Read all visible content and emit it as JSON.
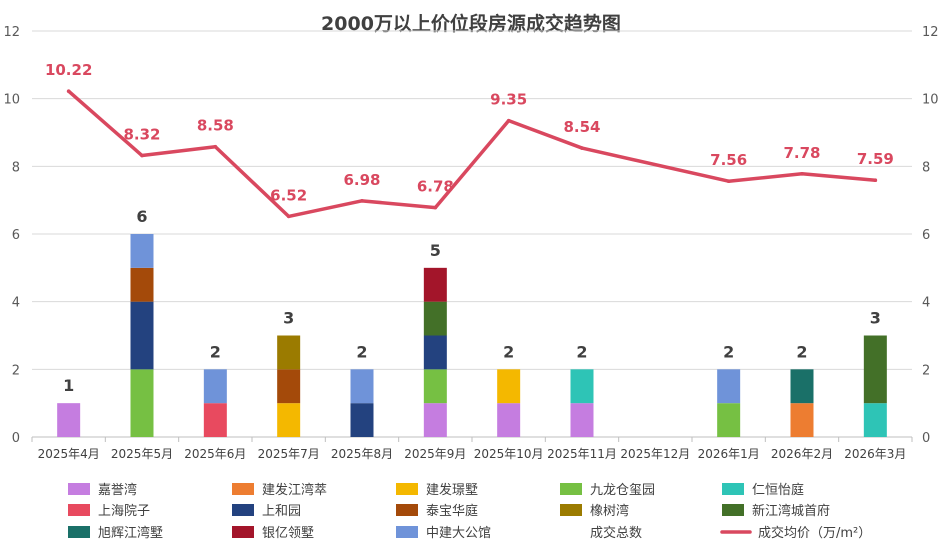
{
  "chart_data": {
    "type": "bar",
    "title": "2000万以上价位段房源成交趋势图",
    "categories": [
      "2025年4月",
      "2025年5月",
      "2025年6月",
      "2025年7月",
      "2025年8月",
      "2025年9月",
      "2025年10月",
      "2025年11月",
      "2025年12月",
      "2026年1月",
      "2026年2月",
      "2026年3月"
    ],
    "ylim": [
      0,
      12
    ],
    "y_ticks": [
      "0",
      "2",
      "4",
      "6",
      "8",
      "10",
      "12"
    ],
    "grid": true,
    "series": [
      {
        "name": "嘉誉湾",
        "color": "#c57de0",
        "values": [
          1,
          0,
          0,
          0,
          0,
          1,
          1,
          1,
          0,
          0,
          0,
          0
        ]
      },
      {
        "name": "建发江湾萃",
        "color": "#ed7d31",
        "values": [
          0,
          0,
          0,
          0,
          0,
          0,
          0,
          0,
          0,
          0,
          1,
          0
        ]
      },
      {
        "name": "建发璟墅",
        "color": "#f4b800",
        "values": [
          0,
          0,
          0,
          1,
          0,
          0,
          1,
          0,
          0,
          0,
          0,
          0
        ]
      },
      {
        "name": "九龙仓玺园",
        "color": "#76c043",
        "values": [
          0,
          2,
          0,
          0,
          0,
          1,
          0,
          0,
          0,
          1,
          0,
          0
        ]
      },
      {
        "name": "仁恒怡庭",
        "color": "#2ec4b6",
        "values": [
          0,
          0,
          0,
          0,
          0,
          0,
          0,
          1,
          0,
          0,
          0,
          1
        ]
      },
      {
        "name": "上海院子",
        "color": "#e84a5f",
        "values": [
          0,
          0,
          1,
          0,
          0,
          0,
          0,
          0,
          0,
          0,
          0,
          0
        ]
      },
      {
        "name": "上和园",
        "color": "#23427f",
        "values": [
          0,
          2,
          0,
          0,
          1,
          1,
          0,
          0,
          0,
          0,
          0,
          0
        ]
      },
      {
        "name": "泰宝华庭",
        "color": "#a44a0a",
        "values": [
          0,
          1,
          0,
          1,
          0,
          0,
          0,
          0,
          0,
          0,
          0,
          0
        ]
      },
      {
        "name": "橡树湾",
        "color": "#9b7b00",
        "values": [
          0,
          0,
          0,
          1,
          0,
          0,
          0,
          0,
          0,
          0,
          0,
          0
        ]
      },
      {
        "name": "新江湾城首府",
        "color": "#437028",
        "values": [
          0,
          0,
          0,
          0,
          0,
          1,
          0,
          0,
          0,
          0,
          0,
          2
        ]
      },
      {
        "name": "旭辉江湾墅",
        "color": "#1a7068",
        "values": [
          0,
          0,
          0,
          0,
          0,
          0,
          0,
          0,
          0,
          0,
          1,
          0
        ]
      },
      {
        "name": "银亿领墅",
        "color": "#a3152a",
        "values": [
          0,
          0,
          0,
          0,
          0,
          1,
          0,
          0,
          0,
          0,
          0,
          0
        ]
      },
      {
        "name": "中建大公馆",
        "color": "#6f93d9",
        "values": [
          0,
          1,
          1,
          0,
          1,
          0,
          0,
          0,
          0,
          1,
          0,
          0
        ]
      }
    ],
    "totals": {
      "name": "成交总数",
      "values": [
        1,
        6,
        2,
        3,
        2,
        5,
        2,
        2,
        null,
        2,
        2,
        3
      ],
      "labels": [
        "1",
        "6",
        "2",
        "3",
        "2",
        "5",
        "2",
        "2",
        "",
        "2",
        "2",
        "3"
      ]
    },
    "line": {
      "name": "成交均价（万/m²）",
      "color": "#d9485f",
      "values": [
        10.22,
        8.32,
        8.58,
        6.52,
        6.98,
        6.78,
        9.35,
        8.54,
        null,
        7.56,
        7.78,
        7.59
      ],
      "labels": [
        "10.22",
        "8.32",
        "8.58",
        "6.52",
        "6.98",
        "6.78",
        "9.35",
        "8.54",
        "",
        "7.56",
        "7.78",
        "7.59"
      ]
    },
    "legend_position": "bottom"
  }
}
